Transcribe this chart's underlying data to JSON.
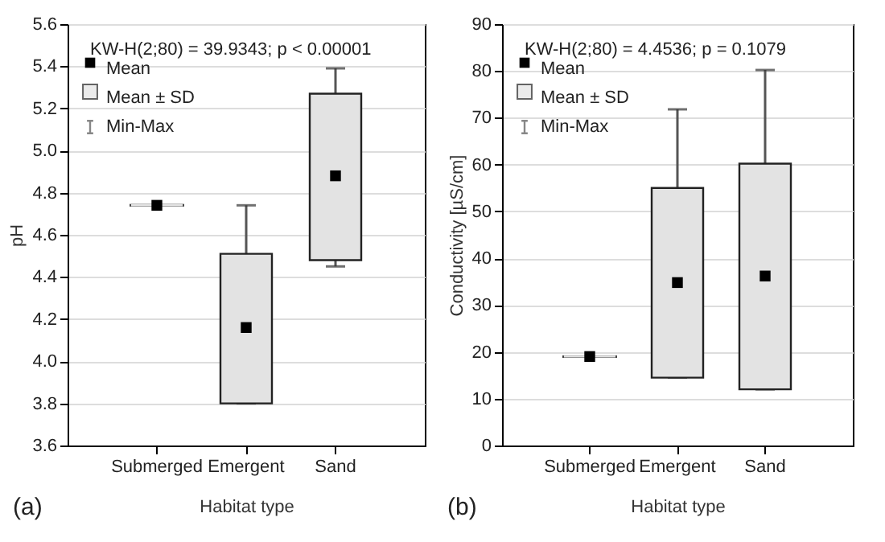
{
  "chart_data": [
    {
      "type": "bar",
      "xlabel": "Habitat type",
      "ylabel": "pH",
      "categories": [
        "Submerged",
        "Emergent",
        "Sand"
      ],
      "series": [
        {
          "name": "Mean ± SD",
          "type": "bar",
          "color": "#e3e3e3",
          "base": [
            4.74,
            3.8,
            4.48
          ],
          "values": [
            0,
            0.71,
            0.79
          ]
        },
        {
          "name": "Mean",
          "type": "scatter",
          "marker": "square",
          "color": "#000000",
          "values": [
            4.74,
            4.16,
            4.88
          ],
          "errors": [
            [
              4.74,
              4.74
            ],
            [
              3.8,
              4.74
            ],
            [
              4.45,
              5.39
            ]
          ]
        }
      ],
      "ylim": [
        3.6,
        5.6
      ],
      "yticks": [
        3.6,
        3.8,
        {
          "value": 4,
          "label": "4.0"
        },
        4.2,
        4.4,
        4.6,
        4.8,
        {
          "value": 5,
          "label": "5.0"
        },
        5.2,
        5.4,
        5.6
      ],
      "grid": "y",
      "legend": "top left",
      "annotations": [
        "KW-H(2;80) = 39.9343; p < 0.00001",
        "(a)",
        "Min-Max"
      ]
    },
    {
      "type": "bar",
      "xlabel": "Habitat type",
      "ylabel": "Conductivity [µS/cm]",
      "categories": [
        "Submerged",
        "Emergent",
        "Sand"
      ],
      "series": [
        {
          "name": "Mean ± SD",
          "type": "bar",
          "color": "#e3e3e3",
          "base": [
            19,
            14.5,
            12
          ],
          "values": [
            0,
            40.5,
            48.2
          ]
        },
        {
          "name": "Mean",
          "type": "scatter",
          "marker": "square",
          "color": "#000000",
          "values": [
            19,
            34.8,
            36.2
          ],
          "errors": [
            [
              19,
              19
            ],
            [
              14.5,
              71.8
            ],
            [
              12,
              80.2
            ]
          ]
        }
      ],
      "ylim": [
        0,
        90
      ],
      "yticks": [
        0,
        10,
        20,
        30,
        40,
        50,
        60,
        70,
        80,
        90
      ],
      "grid": "y",
      "legend": "top left",
      "annotations": [
        "KW-H(2;80) = 4.4536; p = 0.1079",
        "(b)",
        "Min-Max"
      ]
    }
  ]
}
